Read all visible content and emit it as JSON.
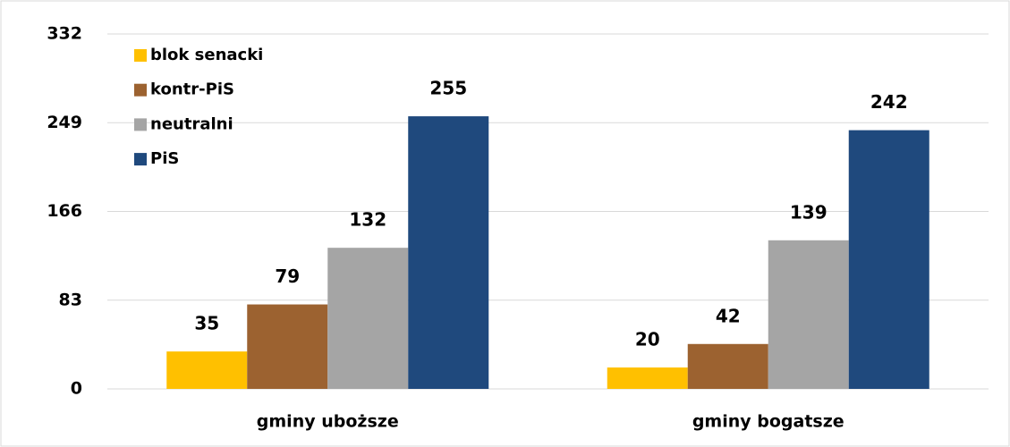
{
  "chart_data": {
    "type": "bar",
    "categories": [
      "gminy uboższe",
      "gminy bogatsze"
    ],
    "series": [
      {
        "name": "blok senacki",
        "color": "#FFC000",
        "values": [
          35,
          20
        ]
      },
      {
        "name": "kontr-PiS",
        "color": "#9C6230",
        "values": [
          79,
          42
        ]
      },
      {
        "name": "neutralni",
        "color": "#A5A5A5",
        "values": [
          132,
          139
        ]
      },
      {
        "name": "PiS",
        "color": "#1F497D",
        "values": [
          255,
          242
        ]
      }
    ],
    "ylim": [
      0,
      332
    ],
    "yticks": [
      0,
      83,
      166,
      249,
      332
    ],
    "grid": true,
    "legend": "top-left"
  }
}
